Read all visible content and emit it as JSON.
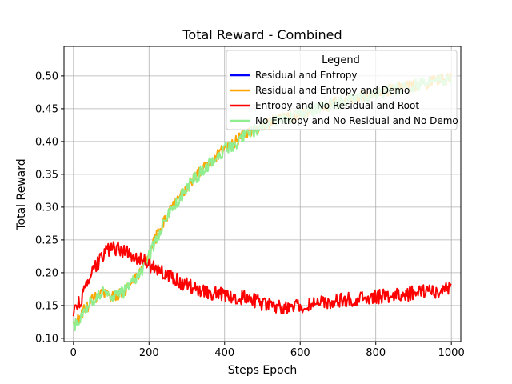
{
  "chart_data": {
    "type": "line",
    "title": "Total Reward - Combined",
    "xlabel": "Steps Epoch",
    "ylabel": "Total Reward",
    "xlim": [
      -25,
      1025
    ],
    "ylim": [
      0.095,
      0.545
    ],
    "x_ticks": [
      0,
      200,
      400,
      600,
      800,
      1000
    ],
    "y_ticks": [
      0.1,
      0.15,
      0.2,
      0.25,
      0.3,
      0.35,
      0.4,
      0.45,
      0.5
    ],
    "y_tick_labels": [
      "0.10",
      "0.15",
      "0.20",
      "0.25",
      "0.30",
      "0.35",
      "0.40",
      "0.45",
      "0.50"
    ],
    "grid": true,
    "legend": {
      "title": "Legend",
      "position": "top-right"
    },
    "series": [
      {
        "name": "Residual and Entropy",
        "color": "#0000ff",
        "x": [],
        "y": [],
        "noise": 0
      },
      {
        "name": "Residual and Entropy and Demo",
        "color": "#ffa500",
        "x": [
          0,
          25,
          50,
          75,
          100,
          125,
          150,
          175,
          200,
          225,
          250,
          275,
          300,
          325,
          350,
          375,
          400,
          425,
          450,
          475,
          500,
          525,
          550,
          575,
          600,
          625,
          650,
          675,
          700,
          725,
          750,
          775,
          800,
          825,
          850,
          875,
          900,
          925,
          950,
          975,
          1000
        ],
        "y": [
          0.118,
          0.14,
          0.158,
          0.168,
          0.163,
          0.168,
          0.18,
          0.2,
          0.23,
          0.262,
          0.29,
          0.31,
          0.33,
          0.348,
          0.363,
          0.375,
          0.39,
          0.398,
          0.41,
          0.418,
          0.425,
          0.43,
          0.435,
          0.438,
          0.443,
          0.447,
          0.452,
          0.455,
          0.46,
          0.463,
          0.468,
          0.47,
          0.474,
          0.477,
          0.48,
          0.483,
          0.486,
          0.488,
          0.491,
          0.494,
          0.495
        ],
        "noise": 0.009
      },
      {
        "name": "Entropy and No Residual and Root",
        "color": "#ff0000",
        "x": [
          0,
          25,
          50,
          75,
          100,
          125,
          150,
          175,
          200,
          225,
          250,
          275,
          300,
          325,
          350,
          375,
          400,
          425,
          450,
          475,
          500,
          525,
          550,
          575,
          600,
          625,
          650,
          675,
          700,
          725,
          750,
          775,
          800,
          825,
          850,
          875,
          900,
          925,
          950,
          975,
          1000
        ],
        "y": [
          0.14,
          0.165,
          0.2,
          0.225,
          0.238,
          0.236,
          0.228,
          0.222,
          0.212,
          0.205,
          0.195,
          0.188,
          0.182,
          0.176,
          0.172,
          0.168,
          0.166,
          0.164,
          0.162,
          0.158,
          0.153,
          0.15,
          0.148,
          0.148,
          0.149,
          0.151,
          0.153,
          0.155,
          0.157,
          0.159,
          0.16,
          0.161,
          0.163,
          0.164,
          0.165,
          0.167,
          0.169,
          0.171,
          0.172,
          0.173,
          0.174
        ],
        "noise": 0.011
      },
      {
        "name": "No Entropy and No Residual and No Demo",
        "color": "#90ee90",
        "x": [
          0,
          25,
          50,
          75,
          100,
          125,
          150,
          175,
          200,
          225,
          250,
          275,
          300,
          325,
          350,
          375,
          400,
          425,
          450,
          475,
          500,
          525,
          550,
          575,
          600,
          625,
          650,
          675,
          700,
          725,
          750,
          775,
          800,
          825,
          850,
          875,
          900,
          925,
          950,
          975,
          1000
        ],
        "y": [
          0.117,
          0.14,
          0.158,
          0.17,
          0.165,
          0.168,
          0.18,
          0.198,
          0.225,
          0.258,
          0.288,
          0.308,
          0.328,
          0.346,
          0.362,
          0.374,
          0.388,
          0.396,
          0.408,
          0.416,
          0.423,
          0.428,
          0.433,
          0.437,
          0.442,
          0.446,
          0.45,
          0.454,
          0.459,
          0.462,
          0.466,
          0.469,
          0.473,
          0.476,
          0.479,
          0.482,
          0.485,
          0.488,
          0.49,
          0.493,
          0.496
        ],
        "noise": 0.01
      }
    ]
  }
}
